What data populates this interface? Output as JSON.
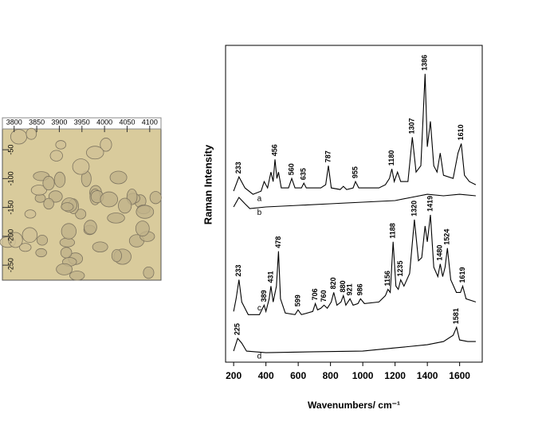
{
  "chart_data": [
    {
      "type": "image",
      "xlim": [
        3774,
        4125
      ],
      "xticks": [
        3800,
        3850,
        3900,
        3950,
        4000,
        4050,
        4100
      ],
      "ylim": [
        -276,
        -14
      ],
      "yticks": [
        -50,
        -100,
        -150,
        -200,
        -250
      ]
    },
    {
      "type": "line",
      "x_label": "Wavenumbers/ cm⁻¹",
      "y_label": "Raman Intensity",
      "xlim": [
        150,
        1740
      ],
      "xticks": [
        200,
        400,
        600,
        800,
        1000,
        1200,
        1400,
        1600
      ],
      "ylim": [
        0,
        100
      ],
      "series": [
        {
          "name": "a",
          "color": "#000000",
          "x": [
            200,
            233,
            270,
            320,
            370,
            389,
            410,
            431,
            445,
            456,
            468,
            478,
            495,
            540,
            560,
            580,
            620,
            635,
            650,
            740,
            770,
            787,
            805,
            860,
            880,
            900,
            940,
            955,
            975,
            1100,
            1140,
            1165,
            1180,
            1195,
            1215,
            1235,
            1280,
            1307,
            1330,
            1360,
            1386,
            1400,
            1419,
            1440,
            1460,
            1480,
            1500,
            1560,
            1590,
            1610,
            1630,
            1660,
            1700
          ],
          "values": [
            54,
            58.5,
            55,
            53,
            54,
            57,
            55,
            60,
            57,
            64,
            58,
            60,
            55,
            55,
            58,
            55,
            55,
            56.5,
            55,
            55,
            56,
            62,
            55,
            54.5,
            55.5,
            54.5,
            55,
            57,
            55,
            55,
            56,
            58,
            61,
            57,
            60,
            57,
            57,
            71,
            60,
            62,
            91,
            68,
            76,
            62,
            60,
            66,
            59,
            58,
            66,
            69,
            59,
            57,
            56
          ],
          "peaks": [
            233,
            456,
            560,
            635,
            787,
            955,
            1180,
            1307,
            1386,
            1610
          ]
        },
        {
          "name": "b",
          "color": "#000000",
          "x": [
            200,
            233,
            270,
            300,
            400,
            600,
            800,
            1000,
            1200,
            1300,
            1400,
            1500,
            1600,
            1700
          ],
          "values": [
            49,
            52,
            50,
            48.5,
            49,
            49.5,
            50,
            50.5,
            51,
            52,
            53,
            52.5,
            53,
            52.5
          ],
          "peaks": []
        },
        {
          "name": "c",
          "color": "#000000",
          "x": [
            200,
            215,
            233,
            250,
            290,
            360,
            389,
            400,
            420,
            431,
            445,
            465,
            478,
            490,
            520,
            580,
            599,
            620,
            690,
            706,
            720,
            740,
            760,
            780,
            805,
            820,
            840,
            865,
            880,
            895,
            921,
            940,
            970,
            986,
            1010,
            1100,
            1140,
            1156,
            1170,
            1188,
            1205,
            1220,
            1235,
            1255,
            1290,
            1320,
            1345,
            1365,
            1386,
            1400,
            1419,
            1440,
            1465,
            1480,
            1495,
            1510,
            1524,
            1545,
            1580,
            1605,
            1619,
            1640,
            1700
          ],
          "values": [
            16,
            20,
            26,
            19,
            15,
            15,
            18,
            16,
            20,
            24,
            19,
            24,
            35,
            20,
            15.5,
            15,
            16.5,
            15,
            16,
            18.5,
            16.5,
            17,
            18,
            17,
            19,
            22,
            18,
            19,
            21,
            18,
            20,
            18,
            18.5,
            20,
            18.5,
            19,
            21,
            23,
            22,
            38,
            24,
            23,
            26,
            24,
            28,
            45,
            32,
            33,
            43,
            38,
            46.5,
            30,
            27,
            31,
            27,
            30,
            36,
            26,
            22,
            22,
            24,
            20,
            19
          ],
          "peaks": [
            233,
            389,
            431,
            478,
            599,
            706,
            760,
            820,
            880,
            921,
            986,
            1156,
            1188,
            1235,
            1320,
            1419,
            1480,
            1524,
            1619
          ]
        },
        {
          "name": "d",
          "color": "#000000",
          "x": [
            200,
            225,
            250,
            280,
            400,
            700,
            1000,
            1200,
            1400,
            1500,
            1560,
            1581,
            1600,
            1650,
            1700
          ],
          "values": [
            3.5,
            7.5,
            6,
            3.5,
            3,
            3.3,
            3.5,
            4.5,
            5.5,
            6.5,
            8.5,
            11,
            7,
            6.5,
            6.5
          ],
          "peaks": [
            225,
            1581
          ]
        }
      ]
    }
  ]
}
